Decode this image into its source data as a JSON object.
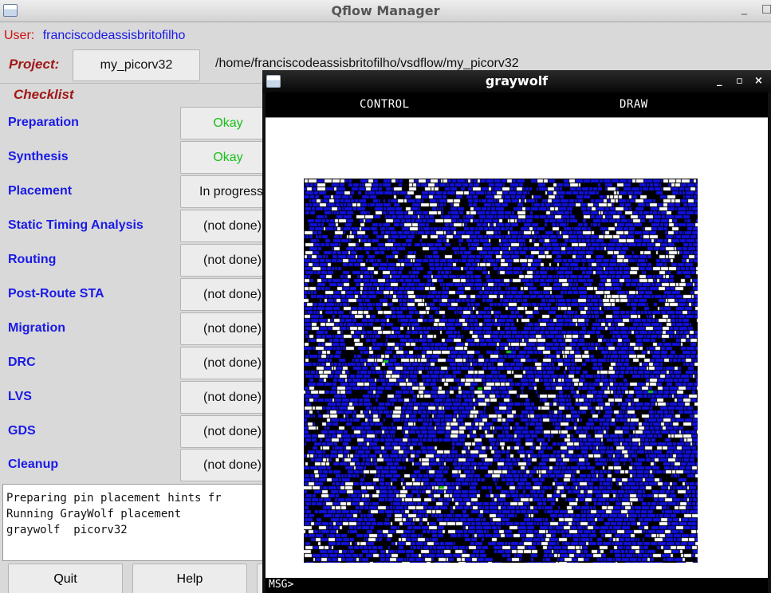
{
  "window": {
    "title": "Qflow Manager",
    "minimize_glyph": "_",
    "maximize_glyph": "□"
  },
  "user": {
    "label": "User:",
    "name": "franciscodeassisbritofilho"
  },
  "project": {
    "label": "Project:",
    "name": "my_picorv32",
    "path": "/home/franciscodeassisbritofilho/vsdflow/my_picorv32"
  },
  "checklist": {
    "title": "Checklist",
    "items": [
      {
        "name": "Preparation",
        "status": "Okay",
        "state": "okay"
      },
      {
        "name": "Synthesis",
        "status": "Okay",
        "state": "okay"
      },
      {
        "name": "Placement",
        "status": "In progress",
        "state": "progress"
      },
      {
        "name": "Static Timing Analysis",
        "status": "(not done)",
        "state": "pending"
      },
      {
        "name": "Routing",
        "status": "(not done)",
        "state": "pending"
      },
      {
        "name": "Post-Route STA",
        "status": "(not done)",
        "state": "pending"
      },
      {
        "name": "Migration",
        "status": "(not done)",
        "state": "pending"
      },
      {
        "name": "DRC",
        "status": "(not done)",
        "state": "pending"
      },
      {
        "name": "LVS",
        "status": "(not done)",
        "state": "pending"
      },
      {
        "name": "GDS",
        "status": "(not done)",
        "state": "pending"
      },
      {
        "name": "Cleanup",
        "status": "(not done)",
        "state": "pending"
      }
    ]
  },
  "log": {
    "lines": [
      "Preparing pin placement hints fr",
      "Running GrayWolf placement",
      "graywolf  picorv32"
    ]
  },
  "buttons": {
    "quit": "Quit",
    "help": "Help"
  },
  "graywolf": {
    "title": "graywolf",
    "menu": {
      "control": "CONTROL",
      "draw": "DRAW"
    },
    "msg_prompt": "MSG>",
    "minimize_glyph": "_",
    "maximize_glyph": "▫",
    "close_glyph": "×",
    "cell_colors": {
      "cell": "#1111dd",
      "outline": "#000000",
      "pin": "#11cc11",
      "background": "#ffffff"
    }
  },
  "colors": {
    "label_blue": "#1a1ae6",
    "label_red": "#a01818",
    "okay_green": "#18c018"
  }
}
